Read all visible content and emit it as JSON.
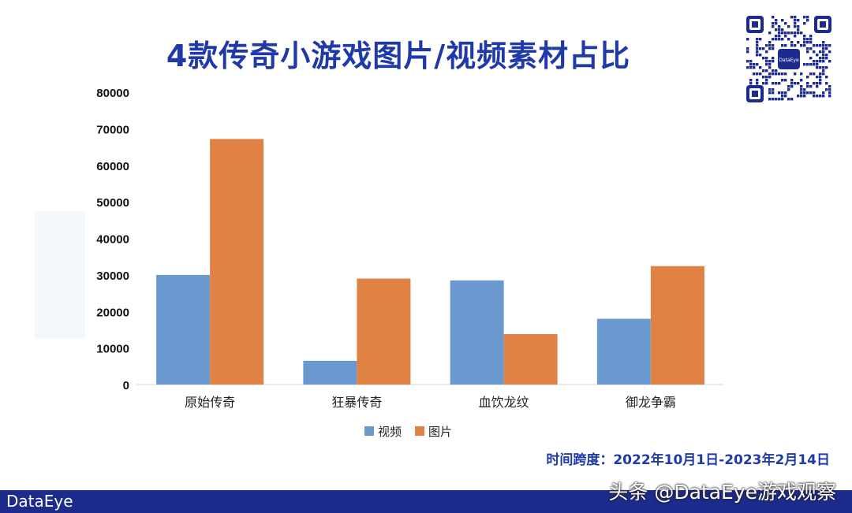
{
  "chart_data": {
    "type": "bar",
    "title": "4款传奇小游戏图片/视频素材占比",
    "categories": [
      "原始传奇",
      "狂暴传奇",
      "血饮龙纹",
      "御龙争霸"
    ],
    "series": [
      {
        "name": "视频",
        "values": [
          30000,
          6500,
          28500,
          18000
        ],
        "color": "#6a99d0"
      },
      {
        "name": "图片",
        "values": [
          67200,
          29000,
          13800,
          32400
        ],
        "color": "#df8244"
      }
    ],
    "yticks": [
      "0",
      "10000",
      "20000",
      "30000",
      "40000",
      "50000",
      "60000",
      "70000",
      "80000"
    ],
    "ylim": [
      0,
      80000
    ],
    "grid": false,
    "legend_position": "bottom-center",
    "xlabel": "",
    "ylabel": ""
  },
  "footer": {
    "time_span": "时间跨度：2022年10月1日-2023年2月14日",
    "logo": "DataEye",
    "attribution": "头条 @DataEye游戏观察"
  },
  "qr": {
    "label": "DataEye"
  }
}
